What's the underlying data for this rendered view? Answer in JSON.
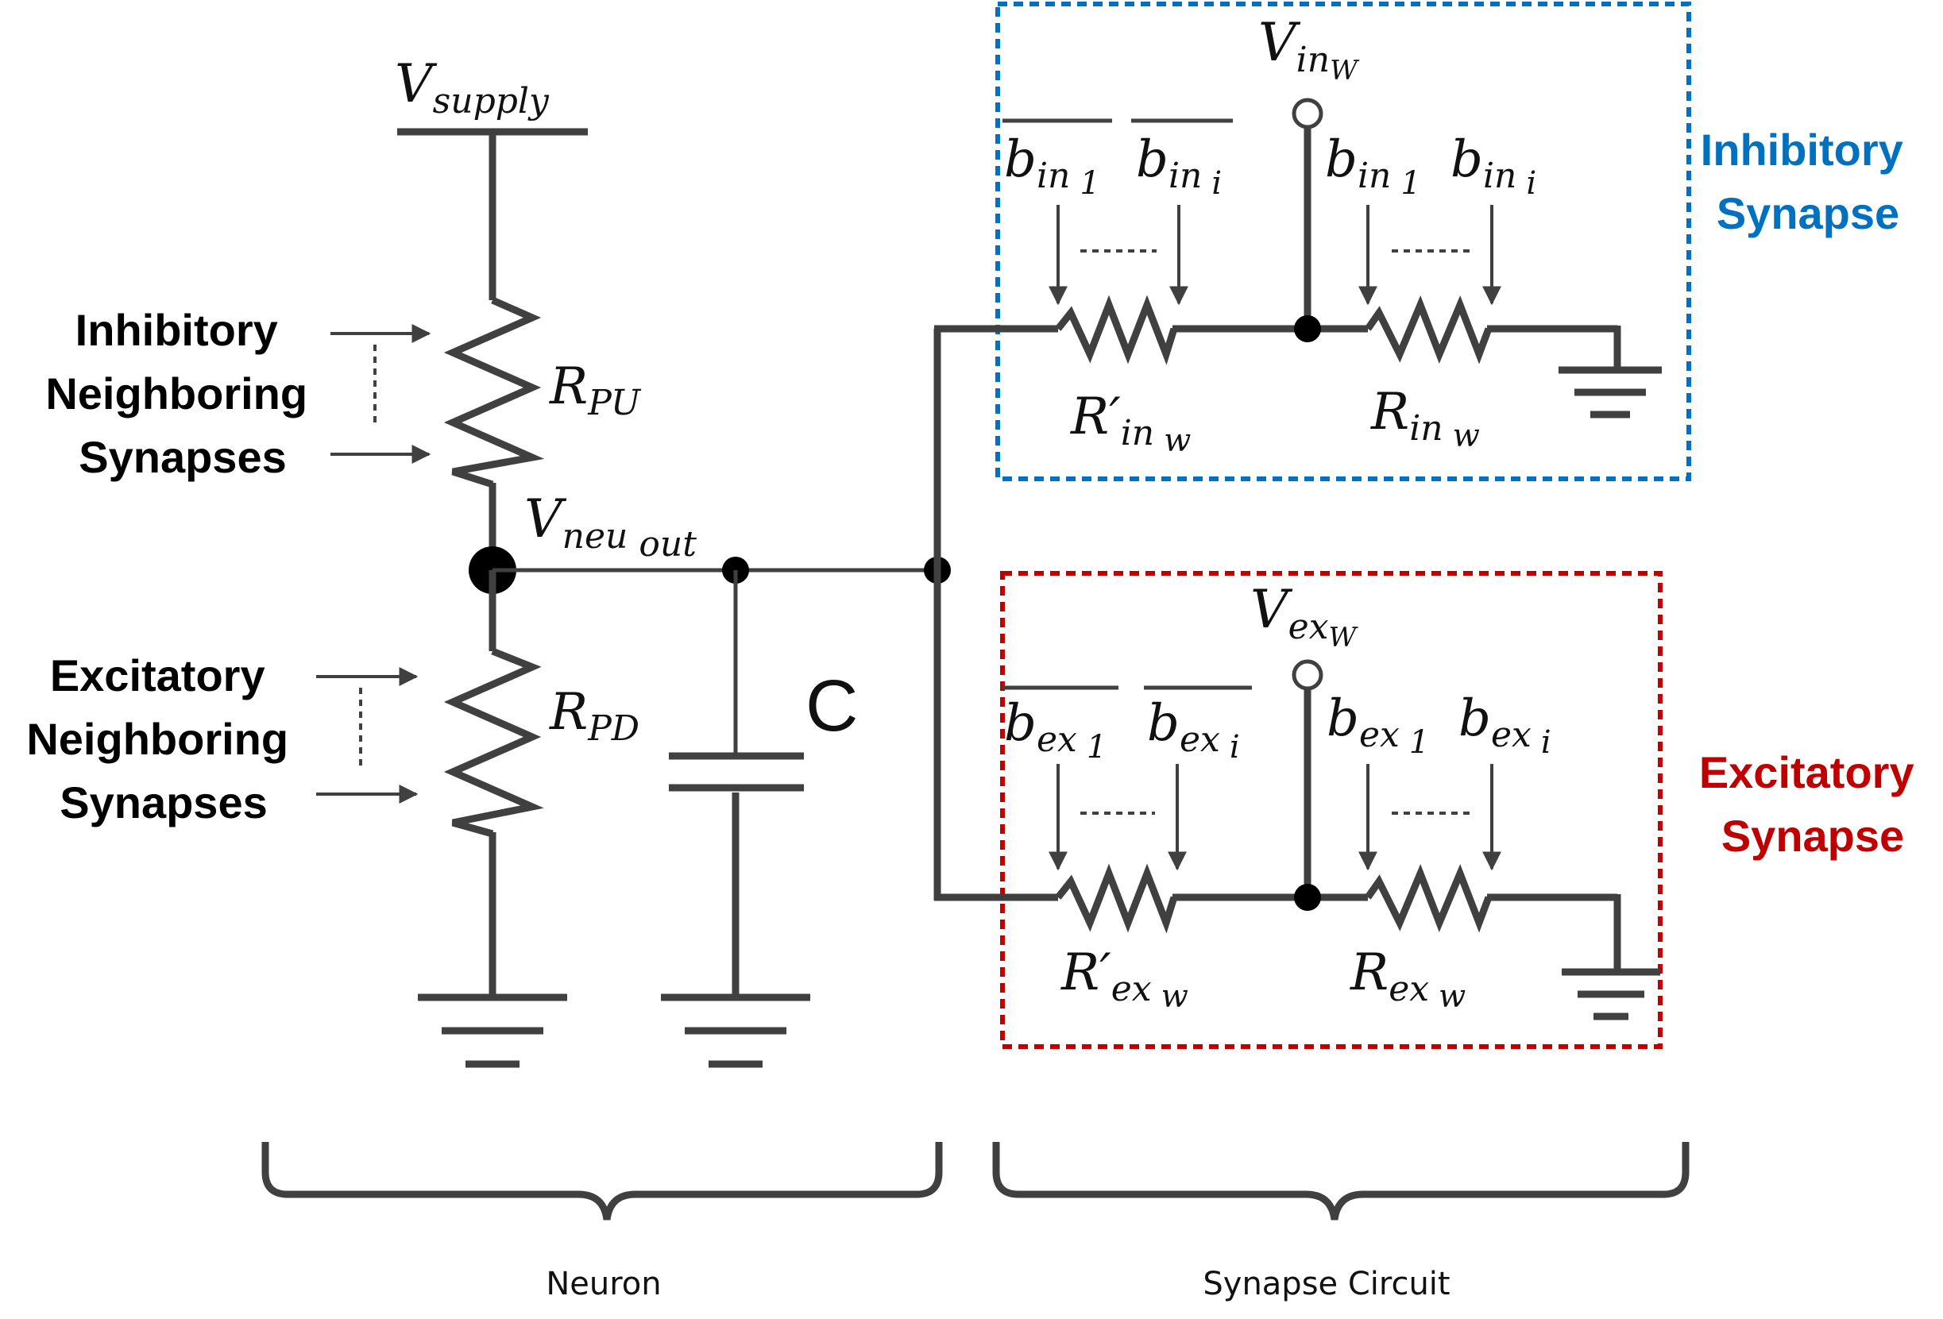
{
  "colors": {
    "wire": "#404040",
    "inhibitory": "#0070C0",
    "excitatory": "#C00000"
  },
  "neuron": {
    "v_supply": {
      "base": "V",
      "sub": "supply"
    },
    "r_pu": {
      "base": "R",
      "sub": "PU"
    },
    "r_pd": {
      "base": "R",
      "sub": "PD"
    },
    "v_neu_out": {
      "base": "V",
      "sub": "neu",
      "sub2": "out"
    },
    "capacitor": "C",
    "inhibitory_label": [
      "Inhibitory",
      "Neighboring",
      "Synapses"
    ],
    "excitatory_label": [
      "Excitatory",
      "Neighboring",
      "Synapses"
    ],
    "caption": "Neuron"
  },
  "inhibitory_synapse": {
    "title": [
      "Inhibitory",
      "Synapse"
    ],
    "v_w": {
      "base": "V",
      "sub": "in",
      "subsub": "W"
    },
    "bar_b1": {
      "base": "b",
      "sub": "in",
      "sub2": "1"
    },
    "bar_bi": {
      "base": "b",
      "sub": "in",
      "sub2": "i"
    },
    "b1": {
      "base": "b",
      "sub": "in",
      "sub2": "1"
    },
    "bi": {
      "base": "b",
      "sub": "in",
      "sub2": "i"
    },
    "r_prime": {
      "base": "R′",
      "sub": "in",
      "sub2": "w"
    },
    "r": {
      "base": "R",
      "sub": "in",
      "sub2": "w"
    }
  },
  "excitatory_synapse": {
    "title": [
      "Excitatory",
      "Synapse"
    ],
    "v_w": {
      "base": "V",
      "sub": "ex",
      "subsub": "W"
    },
    "bar_b1": {
      "base": "b",
      "sub": "ex",
      "sub2": "1"
    },
    "bar_bi": {
      "base": "b",
      "sub": "ex",
      "sub2": "i"
    },
    "b1": {
      "base": "b",
      "sub": "ex",
      "sub2": "1"
    },
    "bi": {
      "base": "b",
      "sub": "ex",
      "sub2": "i"
    },
    "r_prime": {
      "base": "R′",
      "sub": "ex",
      "sub2": "w"
    },
    "r": {
      "base": "R",
      "sub": "ex",
      "sub2": "w"
    }
  },
  "synapse_caption": "Synapse Circuit"
}
